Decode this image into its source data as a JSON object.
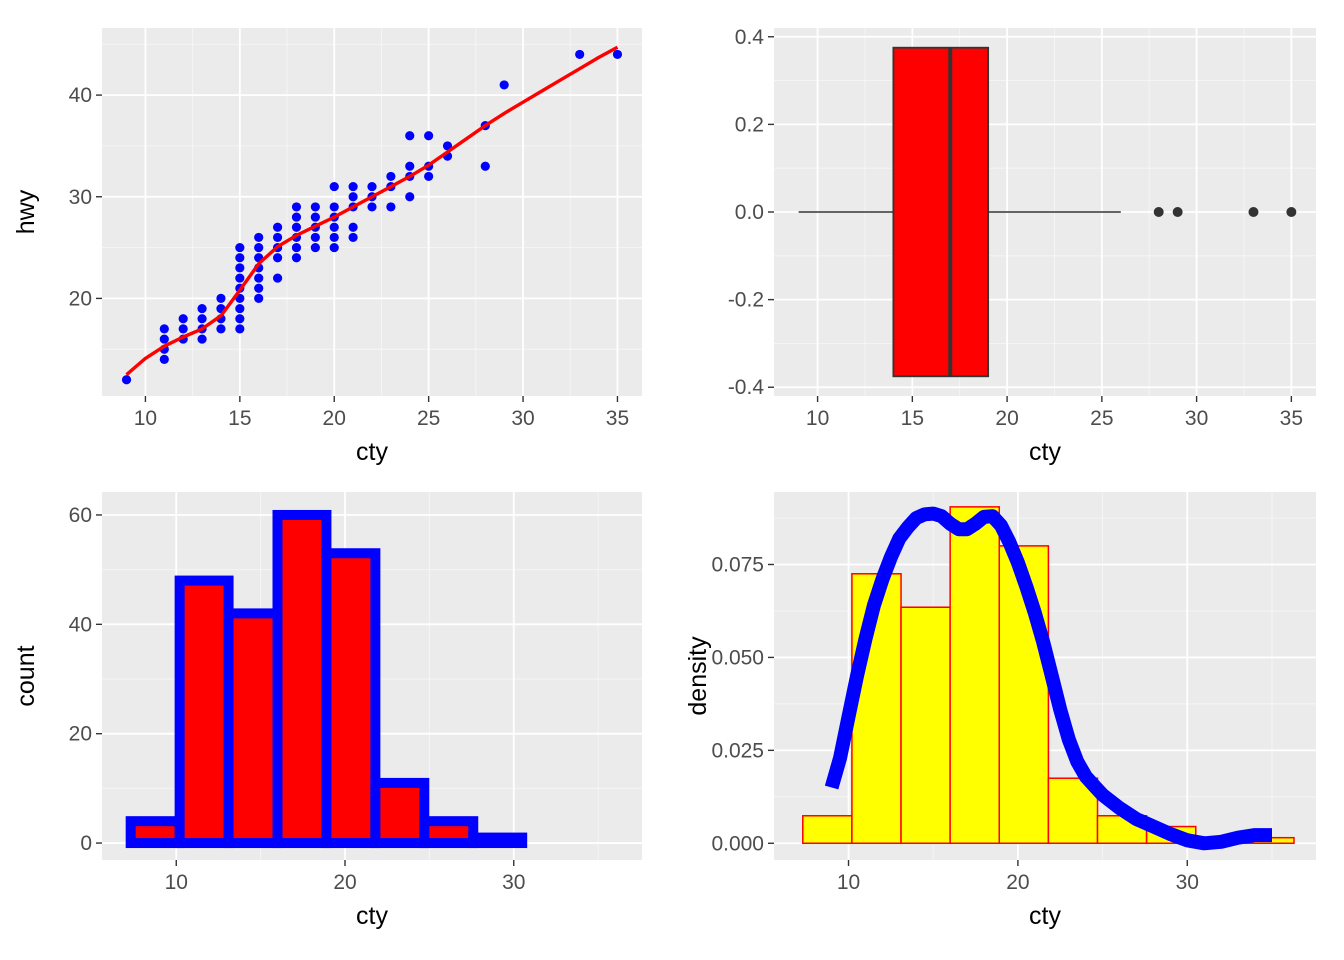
{
  "colors": {
    "panel_bg": "#EBEBEB",
    "grid_major": "#FFFFFF",
    "axis_text": "#4D4D4D",
    "title_text": "#000000",
    "scatter_points": "#0000FF",
    "smooth_line": "#FF0000",
    "box_fill": "#FF0000",
    "box_line": "#333333",
    "hist_fill": "#FF0000",
    "hist_outline": "#0000FF",
    "density_hist_fill": "#FFFF00",
    "density_hist_outline": "#FF0000",
    "density_line": "#0000FF"
  },
  "chart_data": [
    {
      "type": "scatter",
      "xlabel": "cty",
      "ylabel": "hwy",
      "xlim": [
        7.7,
        36.3
      ],
      "ylim": [
        10.4,
        46.6
      ],
      "xticks": [
        10,
        15,
        20,
        25,
        30,
        35
      ],
      "yticks": [
        20,
        30,
        40
      ],
      "grid": true,
      "points": [
        [
          9,
          12
        ],
        [
          11,
          14
        ],
        [
          11,
          15
        ],
        [
          11,
          16
        ],
        [
          11,
          17
        ],
        [
          12,
          16
        ],
        [
          12,
          17
        ],
        [
          12,
          18
        ],
        [
          13,
          16
        ],
        [
          13,
          17
        ],
        [
          13,
          18
        ],
        [
          13,
          19
        ],
        [
          14,
          17
        ],
        [
          14,
          18
        ],
        [
          14,
          19
        ],
        [
          14,
          20
        ],
        [
          15,
          17
        ],
        [
          15,
          18
        ],
        [
          15,
          19
        ],
        [
          15,
          20
        ],
        [
          15,
          21
        ],
        [
          15,
          22
        ],
        [
          15,
          23
        ],
        [
          15,
          24
        ],
        [
          15,
          25
        ],
        [
          16,
          20
        ],
        [
          16,
          21
        ],
        [
          16,
          22
        ],
        [
          16,
          23
        ],
        [
          16,
          24
        ],
        [
          16,
          25
        ],
        [
          16,
          26
        ],
        [
          17,
          22
        ],
        [
          17,
          24
        ],
        [
          17,
          25
        ],
        [
          17,
          26
        ],
        [
          17,
          27
        ],
        [
          18,
          24
        ],
        [
          18,
          25
        ],
        [
          18,
          26
        ],
        [
          18,
          27
        ],
        [
          18,
          28
        ],
        [
          18,
          29
        ],
        [
          19,
          25
        ],
        [
          19,
          26
        ],
        [
          19,
          27
        ],
        [
          19,
          28
        ],
        [
          19,
          29
        ],
        [
          20,
          25
        ],
        [
          20,
          26
        ],
        [
          20,
          27
        ],
        [
          20,
          28
        ],
        [
          20,
          29
        ],
        [
          20,
          31
        ],
        [
          21,
          26
        ],
        [
          21,
          27
        ],
        [
          21,
          29
        ],
        [
          21,
          30
        ],
        [
          21,
          31
        ],
        [
          22,
          29
        ],
        [
          22,
          30
        ],
        [
          22,
          31
        ],
        [
          23,
          29
        ],
        [
          23,
          31
        ],
        [
          23,
          32
        ],
        [
          24,
          30
        ],
        [
          24,
          32
        ],
        [
          24,
          33
        ],
        [
          24,
          36
        ],
        [
          25,
          32
        ],
        [
          25,
          33
        ],
        [
          25,
          36
        ],
        [
          26,
          34
        ],
        [
          26,
          35
        ],
        [
          28,
          33
        ],
        [
          28,
          37
        ],
        [
          29,
          41
        ],
        [
          33,
          44
        ],
        [
          35,
          44
        ]
      ],
      "smooth": [
        [
          9,
          12.5
        ],
        [
          10,
          14.1
        ],
        [
          11,
          15.3
        ],
        [
          12,
          16.2
        ],
        [
          13,
          17.0
        ],
        [
          14,
          18.3
        ],
        [
          15,
          20.8
        ],
        [
          16,
          23.4
        ],
        [
          17,
          25.1
        ],
        [
          18,
          26.2
        ],
        [
          19,
          27.1
        ],
        [
          20,
          28.0
        ],
        [
          21,
          29.0
        ],
        [
          22,
          30.0
        ],
        [
          23,
          31.0
        ],
        [
          24,
          32.0
        ],
        [
          25,
          33.1
        ],
        [
          26,
          34.4
        ],
        [
          27,
          35.7
        ],
        [
          28,
          37.0
        ],
        [
          29,
          38.2
        ],
        [
          30,
          39.3
        ],
        [
          31,
          40.4
        ],
        [
          32,
          41.5
        ],
        [
          33,
          42.6
        ],
        [
          34,
          43.7
        ],
        [
          35,
          44.7
        ]
      ]
    },
    {
      "type": "box",
      "xlabel": "cty",
      "ylabel": "",
      "xlim": [
        7.7,
        36.3
      ],
      "ylim": [
        -0.42,
        0.42
      ],
      "xticks": [
        10,
        15,
        20,
        25,
        30,
        35
      ],
      "yticks": [
        -0.4,
        -0.2,
        0.0,
        0.2,
        0.4
      ],
      "ytick_labels": [
        "-0.4",
        "-0.2",
        "0.0",
        "0.2",
        "0.4"
      ],
      "grid": true,
      "whisker_low": 9,
      "q1": 14,
      "median": 17,
      "q3": 19,
      "whisker_high": 26,
      "box_half_height": 0.375,
      "outliers": [
        28,
        29,
        33,
        35
      ]
    },
    {
      "type": "bar",
      "xlabel": "cty",
      "ylabel": "count",
      "xlim": [
        5.6,
        37.6
      ],
      "ylim": [
        -3.1,
        64.2
      ],
      "xticks": [
        10,
        20,
        30
      ],
      "yticks": [
        0,
        20,
        40,
        60
      ],
      "grid": true,
      "bin_width": 2.9,
      "bin_centers": [
        8.75,
        11.65,
        14.55,
        17.45,
        20.35,
        23.25,
        26.15,
        29.05,
        31.95,
        34.85
      ],
      "values": [
        4,
        48,
        42,
        60,
        53,
        11,
        4,
        1,
        0,
        0
      ]
    },
    {
      "type": "bar",
      "xlabel": "cty",
      "ylabel": "density",
      "xlim": [
        5.6,
        37.6
      ],
      "ylim": [
        -0.0045,
        0.0945
      ],
      "xticks": [
        10,
        20,
        30
      ],
      "yticks": [
        0.0,
        0.025,
        0.05,
        0.075
      ],
      "ytick_labels": [
        "0.000",
        "0.025",
        "0.050",
        "0.075"
      ],
      "grid": true,
      "bin_width": 2.9,
      "bin_centers": [
        8.75,
        11.65,
        14.55,
        17.45,
        20.35,
        23.25,
        26.15,
        29.05,
        31.95,
        34.85
      ],
      "values": [
        0.0074,
        0.0725,
        0.0635,
        0.0905,
        0.08,
        0.0175,
        0.0074,
        0.0045,
        0.0,
        0.0015
      ],
      "density_curve": [
        [
          9,
          0.015
        ],
        [
          9.5,
          0.023
        ],
        [
          10,
          0.034
        ],
        [
          10.5,
          0.045
        ],
        [
          11,
          0.055
        ],
        [
          11.5,
          0.064
        ],
        [
          12,
          0.071
        ],
        [
          12.5,
          0.077
        ],
        [
          13,
          0.082
        ],
        [
          13.5,
          0.085
        ],
        [
          14,
          0.0875
        ],
        [
          14.5,
          0.0885
        ],
        [
          15,
          0.0887
        ],
        [
          15.5,
          0.088
        ],
        [
          16,
          0.086
        ],
        [
          16.5,
          0.0845
        ],
        [
          17,
          0.0845
        ],
        [
          17.5,
          0.086
        ],
        [
          18,
          0.0878
        ],
        [
          18.5,
          0.088
        ],
        [
          19,
          0.0855
        ],
        [
          19.5,
          0.081
        ],
        [
          20,
          0.0755
        ],
        [
          20.5,
          0.069
        ],
        [
          21,
          0.062
        ],
        [
          21.5,
          0.054
        ],
        [
          22,
          0.045
        ],
        [
          22.5,
          0.036
        ],
        [
          23,
          0.028
        ],
        [
          23.5,
          0.022
        ],
        [
          24,
          0.018
        ],
        [
          24.5,
          0.0155
        ],
        [
          25,
          0.013
        ],
        [
          26,
          0.0095
        ],
        [
          27,
          0.0065
        ],
        [
          28,
          0.0045
        ],
        [
          29,
          0.0025
        ],
        [
          30,
          0.0008
        ],
        [
          31,
          0.0
        ],
        [
          32,
          0.0004
        ],
        [
          33,
          0.0015
        ],
        [
          34,
          0.0022
        ],
        [
          35,
          0.0022
        ]
      ]
    }
  ]
}
